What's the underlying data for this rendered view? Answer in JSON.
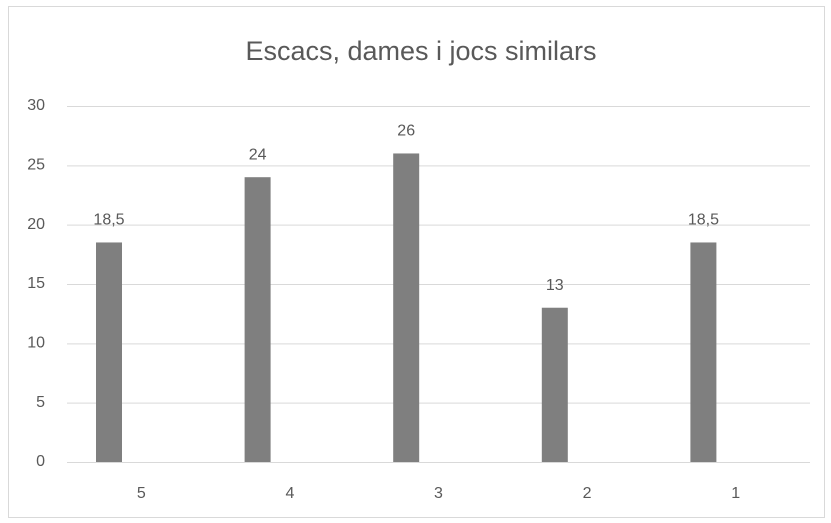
{
  "chart_data": {
    "type": "bar",
    "title": "Escacs, dames i jocs similars",
    "categories": [
      "5",
      "4",
      "3",
      "2",
      "1"
    ],
    "values": [
      18.5,
      24,
      26,
      13,
      18.5
    ],
    "value_labels": [
      "18,5",
      "24",
      "26",
      "13",
      "18,5"
    ],
    "color": "#7f7f7f",
    "ylim": [
      0,
      30
    ],
    "yticks": [
      0,
      5,
      10,
      15,
      20,
      25,
      30
    ],
    "grid": true
  }
}
